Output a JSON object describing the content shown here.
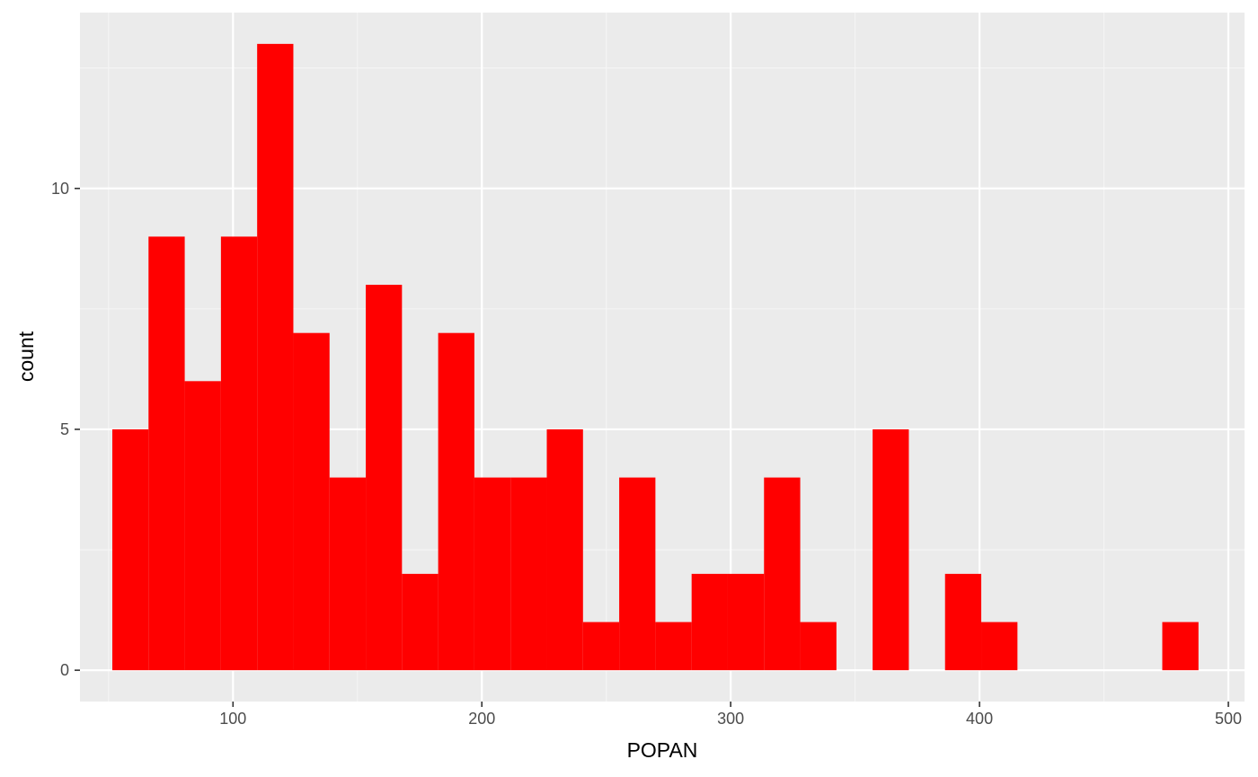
{
  "chart_data": {
    "type": "bar",
    "subtype": "histogram",
    "xlabel": "POPAN",
    "ylabel": "count",
    "xlim": [
      38.5,
      506.5
    ],
    "ylim": [
      -0.65,
      13.65
    ],
    "x_ticks": [
      100,
      200,
      300,
      400,
      500
    ],
    "y_ticks": [
      0,
      5,
      10
    ],
    "bin_width": 14.55,
    "bins": [
      {
        "start": 51.5,
        "end": 66.05,
        "count": 5
      },
      {
        "start": 66.05,
        "end": 80.6,
        "count": 9
      },
      {
        "start": 80.6,
        "end": 95.15,
        "count": 6
      },
      {
        "start": 95.15,
        "end": 109.7,
        "count": 9
      },
      {
        "start": 109.7,
        "end": 124.25,
        "count": 13
      },
      {
        "start": 124.25,
        "end": 138.8,
        "count": 7
      },
      {
        "start": 138.8,
        "end": 153.35,
        "count": 4
      },
      {
        "start": 153.35,
        "end": 167.9,
        "count": 8
      },
      {
        "start": 167.9,
        "end": 182.45,
        "count": 2
      },
      {
        "start": 182.45,
        "end": 197.0,
        "count": 7
      },
      {
        "start": 197.0,
        "end": 211.55,
        "count": 4
      },
      {
        "start": 211.55,
        "end": 226.1,
        "count": 4
      },
      {
        "start": 226.1,
        "end": 240.65,
        "count": 5
      },
      {
        "start": 240.65,
        "end": 255.2,
        "count": 1
      },
      {
        "start": 255.2,
        "end": 269.75,
        "count": 4
      },
      {
        "start": 269.75,
        "end": 284.3,
        "count": 1
      },
      {
        "start": 284.3,
        "end": 298.85,
        "count": 2
      },
      {
        "start": 298.85,
        "end": 313.4,
        "count": 2
      },
      {
        "start": 313.4,
        "end": 327.95,
        "count": 4
      },
      {
        "start": 327.95,
        "end": 342.5,
        "count": 1
      },
      {
        "start": 342.5,
        "end": 357.05,
        "count": 0
      },
      {
        "start": 357.05,
        "end": 371.6,
        "count": 5
      },
      {
        "start": 371.6,
        "end": 386.15,
        "count": 0
      },
      {
        "start": 386.15,
        "end": 400.7,
        "count": 2
      },
      {
        "start": 400.7,
        "end": 415.25,
        "count": 1
      },
      {
        "start": 415.25,
        "end": 429.8,
        "count": 0
      },
      {
        "start": 429.8,
        "end": 444.35,
        "count": 0
      },
      {
        "start": 444.35,
        "end": 458.9,
        "count": 0
      },
      {
        "start": 458.9,
        "end": 473.45,
        "count": 0
      },
      {
        "start": 473.45,
        "end": 488.0,
        "count": 1
      }
    ],
    "grid": true,
    "legend": "none",
    "colors": {
      "bar_fill": "#ff0000",
      "panel_background": "#ebebeb",
      "grid_major": "#ffffff",
      "grid_minor": "#f5f5f5"
    }
  }
}
